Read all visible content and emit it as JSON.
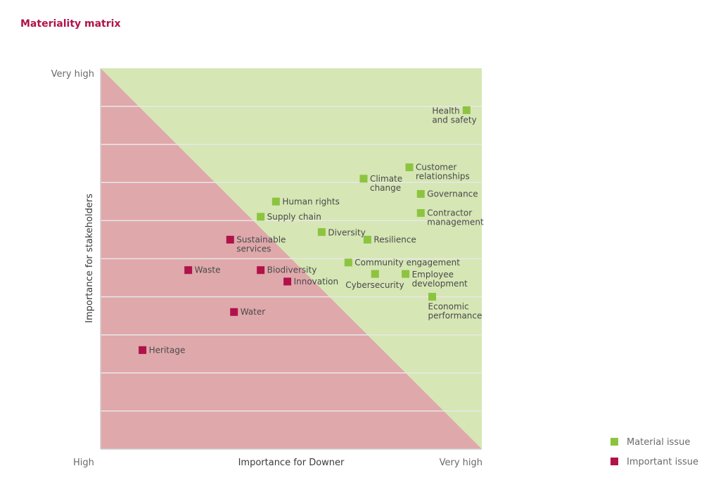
{
  "chart_data": {
    "type": "scatter",
    "title": "Materiality matrix",
    "xlabel": "Importance for Downer",
    "ylabel": "Importance for stakeholders",
    "x_tick_labels": [
      "High",
      "Very high"
    ],
    "y_tick_labels": [
      "Very high"
    ],
    "xlim": [
      0,
      10
    ],
    "ylim": [
      0,
      10
    ],
    "grid": "horizontal",
    "legend_position": "bottom-right",
    "regions": [
      {
        "name": "Material issue",
        "color": "#d6e6b5"
      },
      {
        "name": "Important issue",
        "color": "#dfa8ab"
      }
    ],
    "series": [
      {
        "name": "Material issue",
        "color": "#8cc43f",
        "points": [
          {
            "label": [
              "Health",
              "and safety"
            ],
            "x": 9.6,
            "y": 8.9
          },
          {
            "label": [
              "Customer",
              "relationships"
            ],
            "x": 8.1,
            "y": 7.4
          },
          {
            "label": [
              "Climate",
              "change"
            ],
            "x": 6.9,
            "y": 7.1
          },
          {
            "label": [
              "Governance"
            ],
            "x": 8.4,
            "y": 6.7
          },
          {
            "label": [
              "Contractor",
              "management"
            ],
            "x": 8.4,
            "y": 6.2
          },
          {
            "label": [
              "Human rights"
            ],
            "x": 4.6,
            "y": 6.5
          },
          {
            "label": [
              "Supply chain"
            ],
            "x": 4.2,
            "y": 6.1
          },
          {
            "label": [
              "Diversity"
            ],
            "x": 5.8,
            "y": 5.7
          },
          {
            "label": [
              "Resilience"
            ],
            "x": 7.0,
            "y": 5.5
          },
          {
            "label": [
              "Community engagement"
            ],
            "x": 6.5,
            "y": 4.9
          },
          {
            "label": [
              "Cybersecurity"
            ],
            "x": 7.2,
            "y": 4.6
          },
          {
            "label": [
              "Employee",
              "development"
            ],
            "x": 8.0,
            "y": 4.6
          },
          {
            "label": [
              "Economic",
              "performance"
            ],
            "x": 8.7,
            "y": 4.0
          }
        ]
      },
      {
        "name": "Important issue",
        "color": "#b0124a",
        "points": [
          {
            "label": [
              "Sustainable",
              "services"
            ],
            "x": 3.4,
            "y": 5.5
          },
          {
            "label": [
              "Waste"
            ],
            "x": 2.3,
            "y": 4.7
          },
          {
            "label": [
              "Biodiversity"
            ],
            "x": 4.2,
            "y": 4.7
          },
          {
            "label": [
              "Innovation"
            ],
            "x": 4.9,
            "y": 4.4
          },
          {
            "label": [
              "Water"
            ],
            "x": 3.5,
            "y": 3.6
          },
          {
            "label": [
              "Heritage"
            ],
            "x": 1.1,
            "y": 2.6
          }
        ]
      }
    ]
  }
}
